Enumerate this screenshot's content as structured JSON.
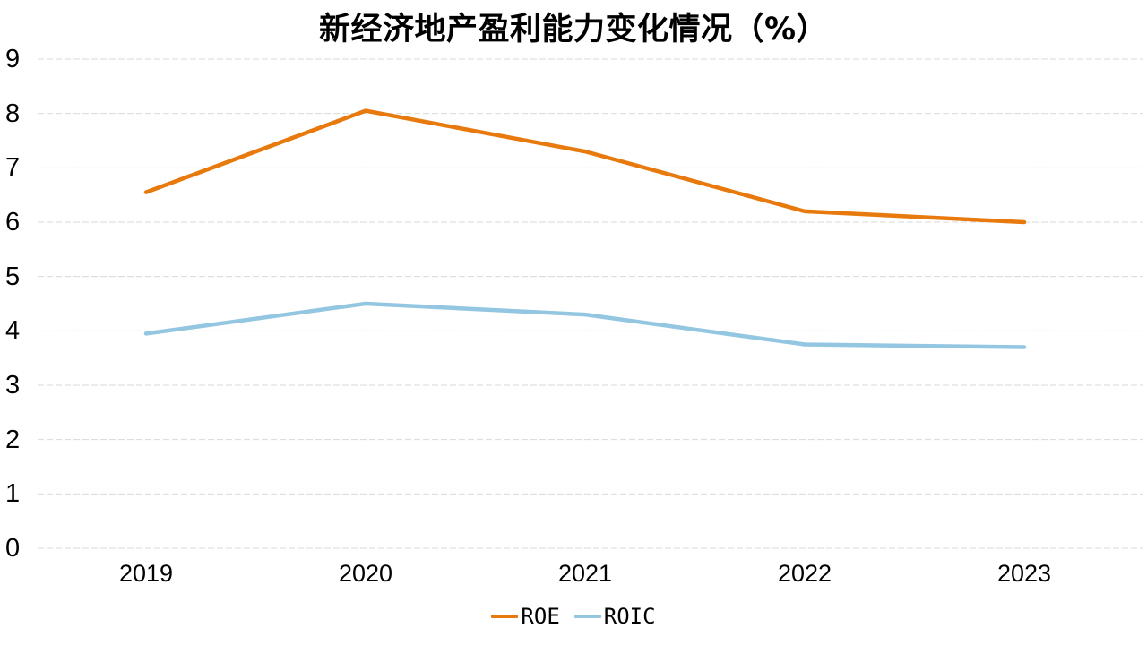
{
  "chart_data": {
    "type": "line",
    "title": "新经济地产盈利能力变化情况（%）",
    "categories": [
      "2019",
      "2020",
      "2021",
      "2022",
      "2023"
    ],
    "series": [
      {
        "name": "ROE",
        "color": "#E8790D",
        "values": [
          6.55,
          8.05,
          7.3,
          6.2,
          6.0
        ]
      },
      {
        "name": "ROIC",
        "color": "#93C6E1",
        "values": [
          3.95,
          4.5,
          4.3,
          3.75,
          3.7
        ]
      }
    ],
    "xlabel": "",
    "ylabel": "",
    "ylim": [
      0,
      9
    ],
    "yticks": [
      0,
      1,
      2,
      3,
      4,
      5,
      6,
      7,
      8,
      9
    ],
    "grid": "horizontal-dashed",
    "gridline_color": "#D9D9D9",
    "text_color": "#000000",
    "background_color": "#FFFFFF",
    "legend_position": "bottom-center"
  }
}
